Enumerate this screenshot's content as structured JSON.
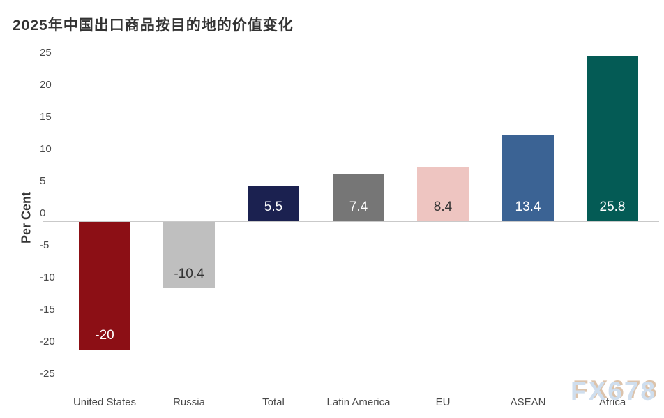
{
  "title": "2025年中国出口商品按目的地的价值变化",
  "watermark": "FX678",
  "chart_data": {
    "type": "bar",
    "title": "2025年中国出口商品按目的地的价值变化",
    "xlabel": "",
    "ylabel": "Per Cent",
    "categories": [
      "United States",
      "Russia",
      "Total",
      "Latin America",
      "EU",
      "ASEAN",
      "Africa"
    ],
    "values": [
      -20,
      -10.4,
      5.5,
      7.4,
      8.4,
      13.4,
      25.8
    ],
    "data_labels": [
      "-20",
      "-10.4",
      "5.5",
      "7.4",
      "8.4",
      "13.4",
      "25.8"
    ],
    "bar_colors": [
      "#8c0f15",
      "#bfbfbf",
      "#1b2150",
      "#767676",
      "#eec5c1",
      "#3b6394",
      "#045b55"
    ],
    "data_label_colors": [
      "#ffffff",
      "#333333",
      "#ffffff",
      "#ffffff",
      "#333333",
      "#ffffff",
      "#ffffff"
    ],
    "ylim": [
      -25,
      25
    ],
    "yticks": [
      25,
      20,
      15,
      10,
      5,
      0,
      -5,
      -10,
      -15,
      -20,
      -25
    ],
    "grid": "zero baseline only",
    "zero_line_color": "#c9c9c9",
    "legend": "none"
  }
}
